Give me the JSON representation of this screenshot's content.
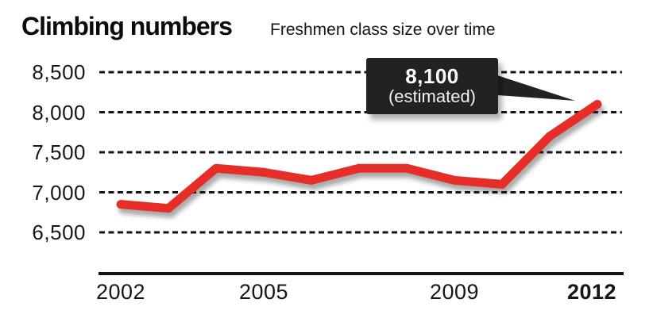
{
  "header": {
    "title": "Climbing numbers",
    "subtitle": "Freshmen class size over time"
  },
  "callout": {
    "value": "8,100",
    "note": "(estimated)"
  },
  "colors": {
    "line_red": "#e62d28",
    "callout_bg": "#242122",
    "grid_black": "#141414",
    "background": "#ffffff"
  },
  "chart_data": {
    "type": "line",
    "title": "Climbing numbers",
    "subtitle": "Freshmen class size over time",
    "x": [
      2002,
      2003,
      2004,
      2005,
      2006,
      2007,
      2008,
      2009,
      2010,
      2011,
      2012
    ],
    "series": [
      {
        "name": "Freshmen class size",
        "color": "#e62d28",
        "values": [
          6850,
          6800,
          7300,
          7250,
          7150,
          7300,
          7300,
          7150,
          7100,
          7700,
          8100
        ]
      }
    ],
    "annotation": {
      "x": 2012,
      "value": 8100,
      "label": "8,100 (estimated)"
    },
    "x_ticks": [
      {
        "label": "2002",
        "year": 2002,
        "bold": false
      },
      {
        "label": "2005",
        "year": 2005,
        "bold": false
      },
      {
        "label": "2009",
        "year": 2009,
        "bold": false
      },
      {
        "label": "2012",
        "year": 2012,
        "bold": true
      }
    ],
    "y_ticks": [
      {
        "label": "8,500",
        "value": 8500
      },
      {
        "label": "8,000",
        "value": 8000
      },
      {
        "label": "7,500",
        "value": 7500
      },
      {
        "label": "7,000",
        "value": 7000
      },
      {
        "label": "6,500",
        "value": 6500
      }
    ],
    "xlim": [
      2002,
      2012
    ],
    "ylim": [
      6500,
      8500
    ],
    "grid": "horizontal-dashed",
    "legend": "none"
  }
}
